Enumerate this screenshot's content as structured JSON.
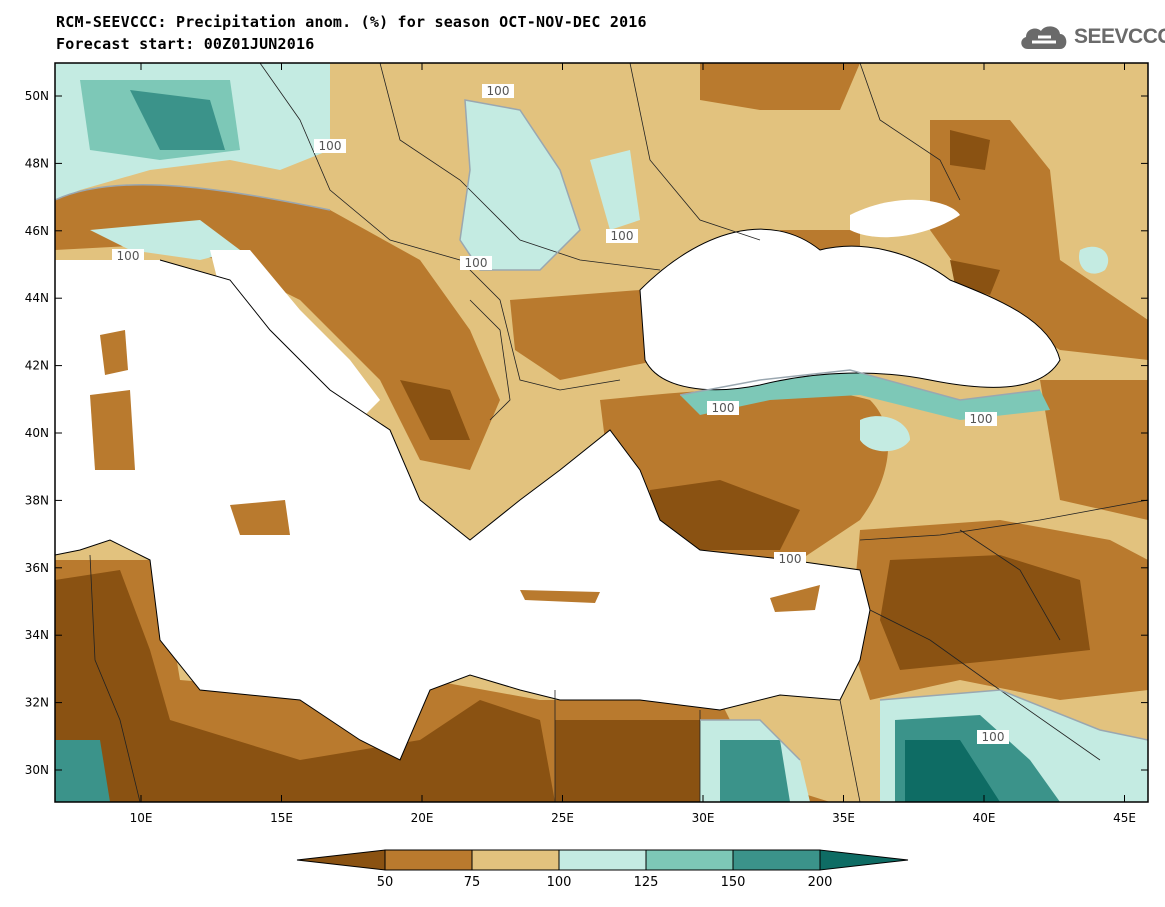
{
  "header": {
    "title": "RCM-SEEVCCC: Precipitation anom. (%) for season OCT-NOV-DEC 2016",
    "subtitle": "Forecast start: 00Z01JUN2016",
    "logo_text": "SEEVCCC"
  },
  "map": {
    "lat_labels": [
      "50N",
      "48N",
      "46N",
      "44N",
      "42N",
      "40N",
      "38N",
      "36N",
      "34N",
      "32N",
      "30N"
    ],
    "lon_labels": [
      "10E",
      "15E",
      "20E",
      "25E",
      "30E",
      "35E",
      "40E",
      "45E"
    ],
    "contour_label": "100",
    "region": "Eastern Mediterranean / Black Sea"
  },
  "legend": {
    "labels": [
      "50",
      "75",
      "100",
      "125",
      "150",
      "200"
    ],
    "colors": [
      "#8a5212",
      "#b97a2e",
      "#e2c27e",
      "#c4ebe2",
      "#7dc8b7",
      "#3b938a",
      "#0e6c64"
    ]
  },
  "colors": {
    "land_base": "#e2c27e",
    "dry_mid": "#b97a2e",
    "dry_strong": "#8a5212",
    "wet_light": "#c4ebe2",
    "wet_mid": "#7dc8b7",
    "wet_strong": "#3b938a",
    "wet_max": "#0e6c64",
    "sea": "#ffffff",
    "contour": "#9aa7b0"
  }
}
